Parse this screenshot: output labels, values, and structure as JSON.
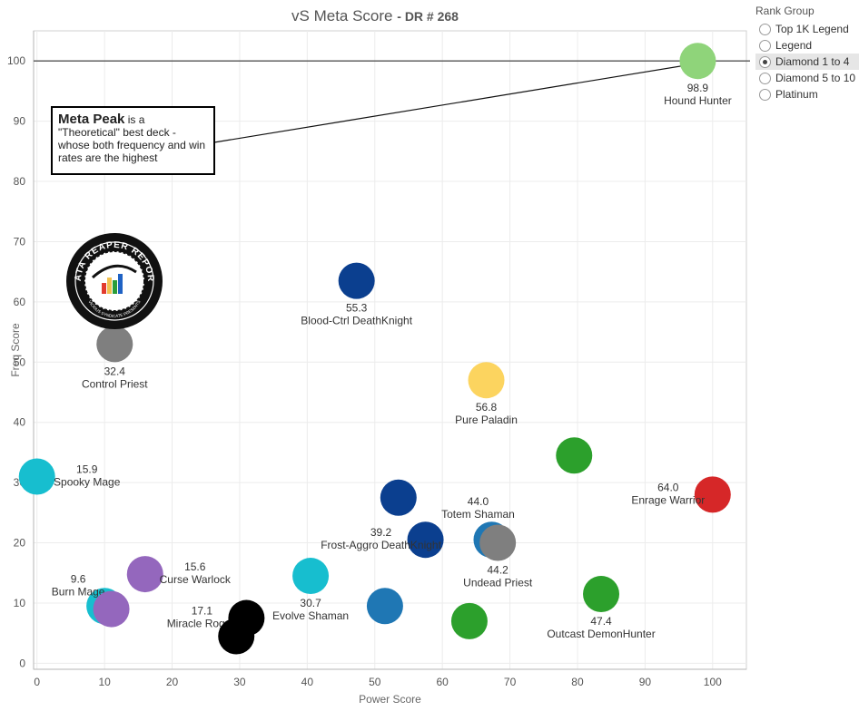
{
  "title": {
    "main": "vS Meta Score",
    "sub": "DR # 268"
  },
  "legend": {
    "title": "Rank Group",
    "options": [
      {
        "label": "Top 1K Legend",
        "selected": false
      },
      {
        "label": "Legend",
        "selected": false
      },
      {
        "label": "Diamond 1 to 4",
        "selected": true
      },
      {
        "label": "Diamond 5 to 10",
        "selected": false
      },
      {
        "label": "Platinum",
        "selected": false
      }
    ]
  },
  "callout": {
    "bold": "Meta Peak",
    "rest": " is a \"Theoretical\" best deck - whose both frequency and win rates are the highest"
  },
  "logo": {
    "text": "DATA REAPER REPORT",
    "subtext": "VICIOUS SYNDICATE PRESENTS"
  },
  "colors": {
    "light_green": "#8fd47a",
    "green": "#2ca02c",
    "dark_blue": "#0b3f8f",
    "mid_blue": "#1f77b4",
    "cyan": "#17becf",
    "yellow": "#fcd45f",
    "red": "#d62728",
    "gray": "#7f7f7f",
    "purple": "#9467bd",
    "black": "#000000"
  },
  "chart_data": {
    "type": "scatter",
    "title": "vS Meta Score - DR # 268",
    "xlabel": "Power Score",
    "ylabel": "Freq Score",
    "xlim": [
      -0.5,
      105
    ],
    "ylim": [
      -1,
      105
    ],
    "xticks": [
      0,
      10,
      20,
      30,
      40,
      50,
      60,
      70,
      80,
      90,
      100
    ],
    "yticks": [
      0,
      10,
      20,
      30,
      40,
      50,
      60,
      70,
      80,
      90,
      100
    ],
    "reference_line_y": 100,
    "points": [
      {
        "name": "Hound Hunter",
        "score": "98.9",
        "x": 97.8,
        "y": 100,
        "color": "light_green",
        "label": "below"
      },
      {
        "name": "Blood-Ctrl DeathKnight",
        "score": "55.3",
        "x": 47.3,
        "y": 63.5,
        "color": "dark_blue",
        "label": "below"
      },
      {
        "name": "Control Priest",
        "score": "32.4",
        "x": 11.5,
        "y": 53,
        "color": "gray",
        "label": "below"
      },
      {
        "name": "Pure Paladin",
        "score": "56.8",
        "x": 66.5,
        "y": 47,
        "color": "yellow",
        "label": "below"
      },
      {
        "name": "",
        "score": "",
        "x": 79.5,
        "y": 34.5,
        "color": "green",
        "label": "none"
      },
      {
        "name": "Enrage Warrior",
        "score": "64.0",
        "x": 100,
        "y": 28,
        "color": "red",
        "label": "left"
      },
      {
        "name": "Spooky Mage",
        "score": "15.9",
        "x": 0,
        "y": 31,
        "color": "cyan",
        "label": "right"
      },
      {
        "name": "",
        "score": "",
        "x": 53.5,
        "y": 27.5,
        "color": "dark_blue",
        "label": "none"
      },
      {
        "name": "Totem Shaman",
        "score": "44.0",
        "x": 67.3,
        "y": 20.5,
        "color": "mid_blue",
        "label": "above"
      },
      {
        "name": "Undead Priest",
        "score": "44.2",
        "x": 68.2,
        "y": 20,
        "color": "gray",
        "label": "below"
      },
      {
        "name": "Frost-Aggro DeathKnight",
        "score": "39.2",
        "x": 57.5,
        "y": 20.5,
        "color": "dark_blue",
        "label": "left"
      },
      {
        "name": "Curse Warlock",
        "score": "15.6",
        "x": 16,
        "y": 14.8,
        "color": "purple",
        "label": "right"
      },
      {
        "name": "Evolve Shaman",
        "score": "30.7",
        "x": 40.5,
        "y": 14.5,
        "color": "cyan",
        "label": "below"
      },
      {
        "name": "Outcast DemonHunter",
        "score": "47.4",
        "x": 83.5,
        "y": 11.5,
        "color": "green",
        "label": "below"
      },
      {
        "name": "",
        "score": "",
        "x": 51.5,
        "y": 9.5,
        "color": "mid_blue",
        "label": "none"
      },
      {
        "name": "",
        "score": "",
        "x": 64,
        "y": 7,
        "color": "green",
        "label": "none"
      },
      {
        "name": "Burn Mage",
        "score": "9.6",
        "x": 10,
        "y": 9.5,
        "color": "cyan",
        "label": "above-left"
      },
      {
        "name": "",
        "score": "",
        "x": 11,
        "y": 9,
        "color": "purple",
        "label": "none"
      },
      {
        "name": "Miracle Rogue",
        "score": "17.1",
        "x": 31,
        "y": 7.5,
        "color": "black",
        "label": "left"
      },
      {
        "name": "",
        "score": "",
        "x": 29.5,
        "y": 4.5,
        "color": "black",
        "label": "none"
      }
    ]
  }
}
